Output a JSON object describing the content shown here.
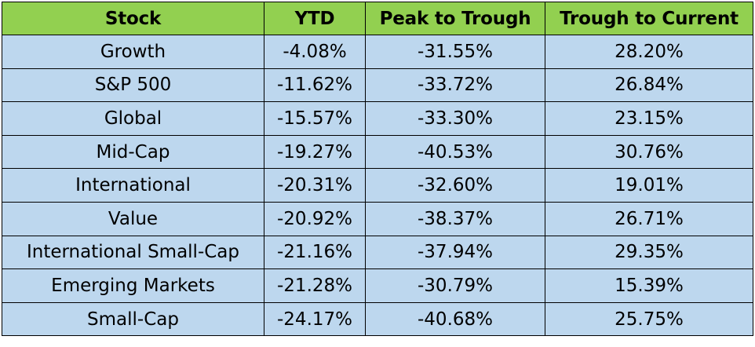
{
  "chart_data": {
    "type": "table",
    "columns": [
      "Stock",
      "YTD",
      "Peak to Trough",
      "Trough to Current"
    ],
    "rows": [
      [
        "Growth",
        "-4.08%",
        "-31.55%",
        "28.20%"
      ],
      [
        "S&P 500",
        "-11.62%",
        "-33.72%",
        "26.84%"
      ],
      [
        "Global",
        "-15.57%",
        "-33.30%",
        "23.15%"
      ],
      [
        "Mid-Cap",
        "-19.27%",
        "-40.53%",
        "30.76%"
      ],
      [
        "International",
        "-20.31%",
        "-32.60%",
        "19.01%"
      ],
      [
        "Value",
        "-20.92%",
        "-38.37%",
        "26.71%"
      ],
      [
        "International Small-Cap",
        "-21.16%",
        "-37.94%",
        "29.35%"
      ],
      [
        "Emerging Markets",
        "-21.28%",
        "-30.79%",
        "15.39%"
      ],
      [
        "Small-Cap",
        "-24.17%",
        "-40.68%",
        "25.75%"
      ]
    ],
    "header_color": "#92d050",
    "row_color": "#bdd7ee",
    "border_color": "#000000"
  }
}
